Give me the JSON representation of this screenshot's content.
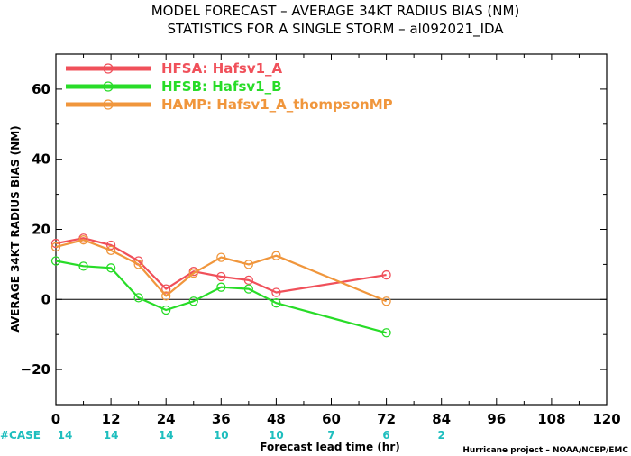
{
  "chart_data": {
    "type": "line",
    "title": "MODEL FORECAST – AVERAGE 34KT RADIUS BIAS (NM)",
    "subtitle": "STATISTICS FOR A SINGLE STORM – al092021_IDA",
    "xlabel": "Forecast lead time (hr)",
    "ylabel": "AVERAGE 34KT RADIUS BIAS (NM)",
    "xlim": [
      0,
      120
    ],
    "ylim": [
      -30,
      70
    ],
    "xticks": [
      0,
      12,
      24,
      36,
      48,
      60,
      72,
      84,
      96,
      108,
      120
    ],
    "yticks": [
      -20,
      0,
      20,
      40,
      60
    ],
    "zero_line": true,
    "legend_position": "top-left",
    "series": [
      {
        "name": "HFSA: Hafsv1_A",
        "color": "#f0505a",
        "x": [
          0,
          6,
          12,
          18,
          24,
          30,
          36,
          42,
          48,
          72
        ],
        "y": [
          16,
          17.5,
          15.5,
          11,
          3,
          8,
          6.5,
          5.5,
          2,
          7
        ]
      },
      {
        "name": "HFSB: Hafsv1_B",
        "color": "#28dc28",
        "x": [
          0,
          6,
          12,
          18,
          24,
          30,
          36,
          42,
          48,
          72
        ],
        "y": [
          11,
          9.5,
          9,
          0.5,
          -3,
          -0.5,
          3.5,
          3,
          -1,
          -9.5
        ]
      },
      {
        "name": "HAMP: Hafsv1_A_thompsonMP",
        "color": "#f0963c",
        "x": [
          0,
          6,
          12,
          18,
          24,
          30,
          36,
          42,
          48,
          72
        ],
        "y": [
          15,
          17,
          14,
          10,
          1,
          7.5,
          12,
          10,
          12.5,
          -0.5
        ]
      }
    ],
    "cases": {
      "label": "#CASE",
      "label_color": "#1ebebe",
      "x": [
        0,
        12,
        24,
        36,
        48,
        60,
        72,
        84
      ],
      "counts": [
        "14",
        "14",
        "14",
        "10",
        "10",
        "7",
        "6",
        "2"
      ]
    },
    "credit": "Hurricane project – NOAA/NCEP/EMC"
  }
}
